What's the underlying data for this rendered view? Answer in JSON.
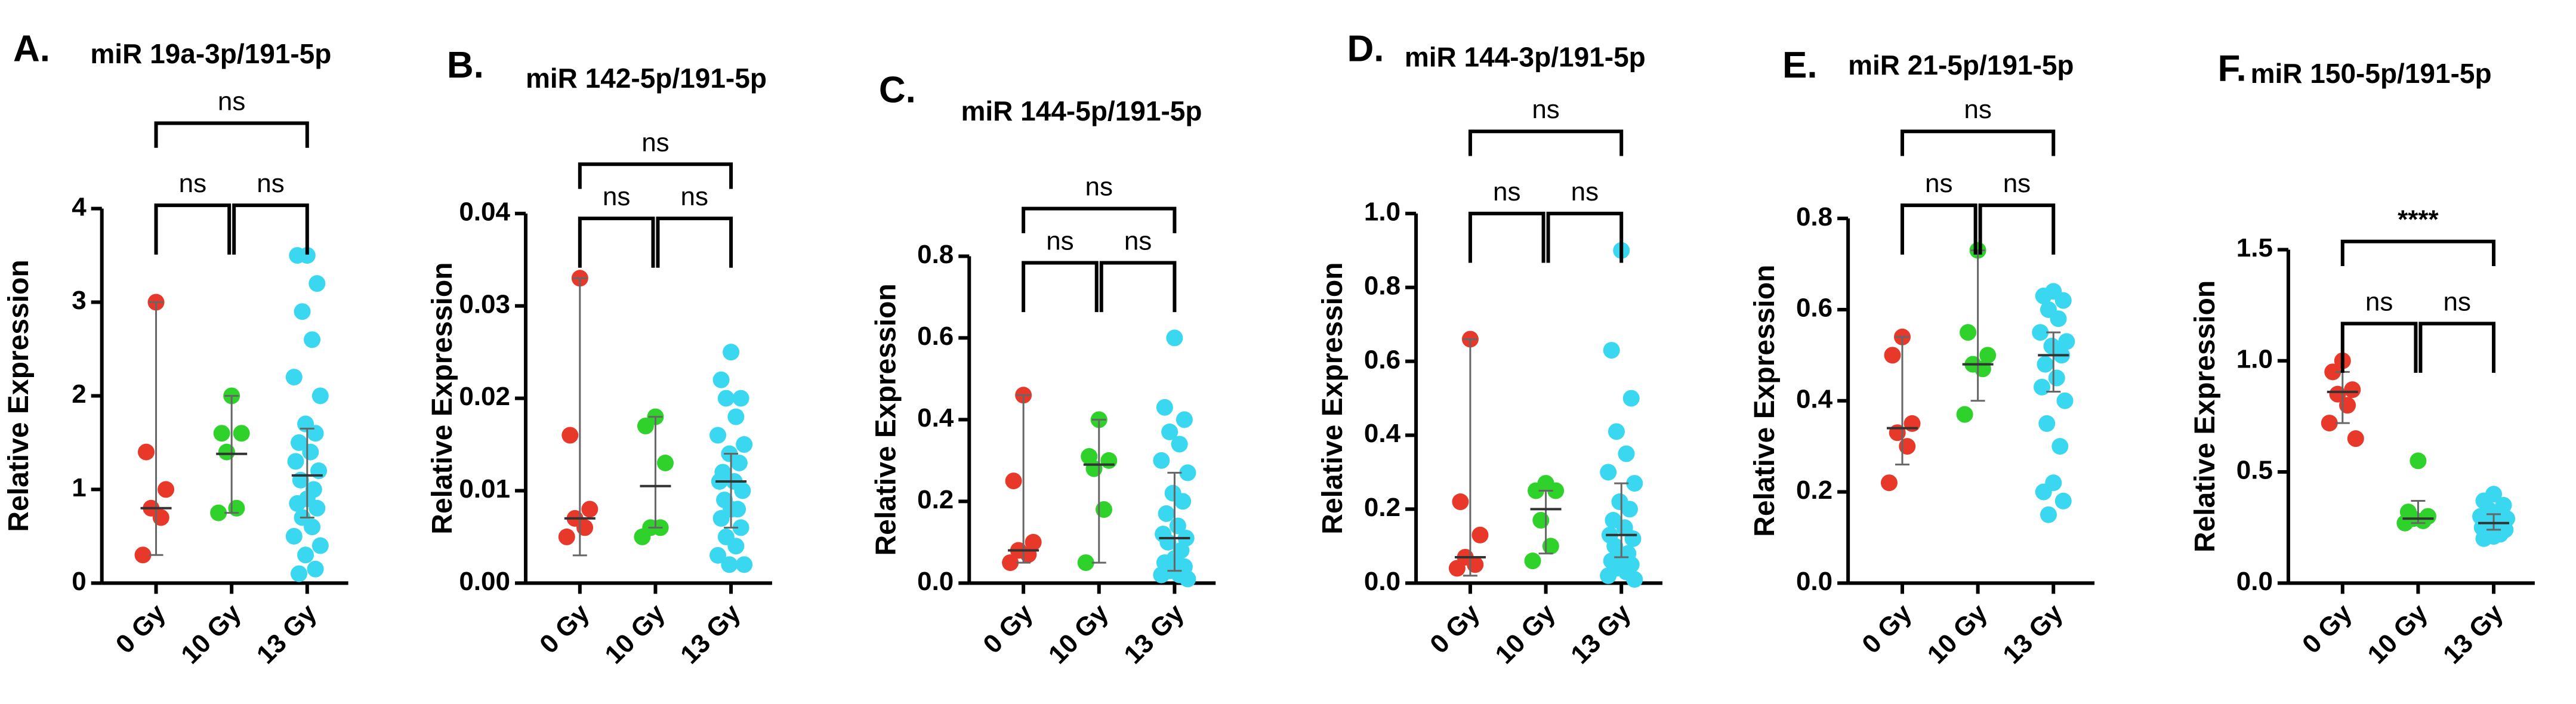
{
  "chart_data": [
    {
      "type": "scatter",
      "label": "A.",
      "title": "miR 19a-3p/191-5p",
      "ylabel": "Relative Expression",
      "categories": [
        "0 Gy",
        "10 Gy",
        "13 Gy"
      ],
      "ylim": [
        0,
        4
      ],
      "yticks": [
        0,
        1,
        2,
        3,
        4
      ],
      "significance": [
        "ns",
        "ns",
        "ns"
      ],
      "groups": [
        {
          "color": "#e8382a",
          "values": [
            3.0,
            1.4,
            1.0,
            0.8,
            0.7,
            0.3
          ],
          "median": 0.8,
          "whisker": [
            0.3,
            3.0
          ]
        },
        {
          "color": "#2fd22a",
          "values": [
            2.0,
            1.6,
            1.6,
            1.4,
            0.8,
            0.75
          ],
          "median": 1.38,
          "whisker": [
            0.75,
            2.0
          ]
        },
        {
          "color": "#3ad8f0",
          "values": [
            3.5,
            3.5,
            3.2,
            2.9,
            2.6,
            2.2,
            2.0,
            1.7,
            1.6,
            1.5,
            1.4,
            1.3,
            1.2,
            1.1,
            1.0,
            0.9,
            0.85,
            0.8,
            0.7,
            0.6,
            0.5,
            0.4,
            0.3,
            0.15,
            0.1
          ],
          "median": 1.15,
          "whisker": [
            0.7,
            1.65
          ]
        }
      ]
    },
    {
      "type": "scatter",
      "label": "B.",
      "title": "miR 142-5p/191-5p",
      "ylabel": "Relative Expression",
      "categories": [
        "0 Gy",
        "10 Gy",
        "13 Gy"
      ],
      "ylim": [
        0,
        0.04
      ],
      "yticks": [
        {
          "value": 0,
          "label": "0.00"
        },
        {
          "value": 0.01,
          "label": "0.01"
        },
        {
          "value": 0.02,
          "label": "0.02"
        },
        {
          "value": 0.03,
          "label": "0.03"
        },
        {
          "value": 0.04,
          "label": "0.04"
        }
      ],
      "significance": [
        "ns",
        "ns",
        "ns"
      ],
      "groups": [
        {
          "color": "#e8382a",
          "values": [
            0.033,
            0.016,
            0.008,
            0.007,
            0.006,
            0.005
          ],
          "median": 0.007,
          "whisker": [
            0.003,
            0.033
          ]
        },
        {
          "color": "#2fd22a",
          "values": [
            0.018,
            0.017,
            0.013,
            0.006,
            0.006,
            0.005
          ],
          "median": 0.0105,
          "whisker": [
            0.006,
            0.018
          ]
        },
        {
          "color": "#3ad8f0",
          "values": [
            0.025,
            0.022,
            0.02,
            0.02,
            0.018,
            0.016,
            0.015,
            0.014,
            0.013,
            0.012,
            0.011,
            0.011,
            0.01,
            0.009,
            0.008,
            0.008,
            0.007,
            0.006,
            0.005,
            0.004,
            0.003,
            0.002,
            0.002
          ],
          "median": 0.011,
          "whisker": [
            0.006,
            0.014
          ]
        }
      ]
    },
    {
      "type": "scatter",
      "label": "C.",
      "title": "miR 144-5p/191-5p",
      "ylabel": "Relative Expression",
      "categories": [
        "0 Gy",
        "10 Gy",
        "13 Gy"
      ],
      "ylim": [
        0,
        0.8
      ],
      "yticks": [
        {
          "value": 0,
          "label": "0.0"
        },
        {
          "value": 0.2,
          "label": "0.2"
        },
        {
          "value": 0.4,
          "label": "0.4"
        },
        {
          "value": 0.6,
          "label": "0.6"
        },
        {
          "value": 0.8,
          "label": "0.8"
        }
      ],
      "significance": [
        "ns",
        "ns",
        "ns"
      ],
      "groups": [
        {
          "color": "#e8382a",
          "values": [
            0.46,
            0.25,
            0.1,
            0.08,
            0.07,
            0.05
          ],
          "median": 0.08,
          "whisker": [
            0.05,
            0.46
          ]
        },
        {
          "color": "#2fd22a",
          "values": [
            0.4,
            0.31,
            0.3,
            0.28,
            0.18,
            0.05
          ],
          "median": 0.29,
          "whisker": [
            0.05,
            0.4
          ]
        },
        {
          "color": "#3ad8f0",
          "values": [
            0.6,
            0.43,
            0.4,
            0.37,
            0.34,
            0.3,
            0.27,
            0.22,
            0.2,
            0.17,
            0.14,
            0.12,
            0.11,
            0.1,
            0.08,
            0.06,
            0.05,
            0.04,
            0.03,
            0.02,
            0.02,
            0.01
          ],
          "median": 0.11,
          "whisker": [
            0.03,
            0.27
          ]
        }
      ]
    },
    {
      "type": "scatter",
      "label": "D.",
      "title": "miR 144-3p/191-5p",
      "ylabel": "Relative Expression",
      "categories": [
        "0 Gy",
        "10 Gy",
        "13 Gy"
      ],
      "ylim": [
        0,
        1.0
      ],
      "yticks": [
        {
          "value": 0,
          "label": "0.0"
        },
        {
          "value": 0.2,
          "label": "0.2"
        },
        {
          "value": 0.4,
          "label": "0.4"
        },
        {
          "value": 0.6,
          "label": "0.6"
        },
        {
          "value": 0.8,
          "label": "0.8"
        },
        {
          "value": 1.0,
          "label": "1.0"
        }
      ],
      "significance": [
        "ns",
        "ns",
        "ns"
      ],
      "groups": [
        {
          "color": "#e8382a",
          "values": [
            0.66,
            0.22,
            0.13,
            0.07,
            0.05,
            0.04
          ],
          "median": 0.07,
          "whisker": [
            0.02,
            0.66
          ]
        },
        {
          "color": "#2fd22a",
          "values": [
            0.27,
            0.25,
            0.25,
            0.17,
            0.1,
            0.06
          ],
          "median": 0.2,
          "whisker": [
            0.08,
            0.25
          ]
        },
        {
          "color": "#3ad8f0",
          "values": [
            0.9,
            0.63,
            0.5,
            0.41,
            0.35,
            0.3,
            0.27,
            0.22,
            0.2,
            0.17,
            0.15,
            0.13,
            0.12,
            0.1,
            0.08,
            0.07,
            0.06,
            0.05,
            0.04,
            0.03,
            0.02,
            0.01
          ],
          "median": 0.13,
          "whisker": [
            0.07,
            0.27
          ]
        }
      ]
    },
    {
      "type": "scatter",
      "label": "E.",
      "title": "miR 21-5p/191-5p",
      "ylabel": "Relative Expression",
      "categories": [
        "0 Gy",
        "10 Gy",
        "13 Gy"
      ],
      "ylim": [
        0,
        0.8
      ],
      "yticks": [
        {
          "value": 0,
          "label": "0.0"
        },
        {
          "value": 0.2,
          "label": "0.2"
        },
        {
          "value": 0.4,
          "label": "0.4"
        },
        {
          "value": 0.6,
          "label": "0.6"
        },
        {
          "value": 0.8,
          "label": "0.8"
        }
      ],
      "significance": [
        "ns",
        "ns",
        "ns"
      ],
      "groups": [
        {
          "color": "#e8382a",
          "values": [
            0.54,
            0.5,
            0.35,
            0.33,
            0.3,
            0.22
          ],
          "median": 0.34,
          "whisker": [
            0.26,
            0.54
          ]
        },
        {
          "color": "#2fd22a",
          "values": [
            0.73,
            0.55,
            0.5,
            0.48,
            0.47,
            0.37
          ],
          "median": 0.48,
          "whisker": [
            0.4,
            0.73
          ]
        },
        {
          "color": "#3ad8f0",
          "values": [
            0.64,
            0.63,
            0.62,
            0.6,
            0.58,
            0.55,
            0.53,
            0.52,
            0.5,
            0.48,
            0.45,
            0.43,
            0.4,
            0.35,
            0.3,
            0.22,
            0.2,
            0.18,
            0.15
          ],
          "median": 0.5,
          "whisker": [
            0.42,
            0.55
          ]
        }
      ]
    },
    {
      "type": "scatter",
      "label": "F.",
      "title": "miR 150-5p/191-5p",
      "ylabel": "Relative Expression",
      "categories": [
        "0 Gy",
        "10 Gy",
        "13 Gy"
      ],
      "ylim": [
        0,
        1.5
      ],
      "yticks": [
        {
          "value": 0,
          "label": "0.0"
        },
        {
          "value": 0.5,
          "label": "0.5"
        },
        {
          "value": 1.0,
          "label": "1.0"
        },
        {
          "value": 1.5,
          "label": "1.5"
        }
      ],
      "significance": [
        "ns",
        "ns",
        "****"
      ],
      "groups": [
        {
          "color": "#e8382a",
          "values": [
            1.0,
            0.95,
            0.87,
            0.85,
            0.8,
            0.72,
            0.65
          ],
          "median": 0.86,
          "whisker": [
            0.72,
            0.95
          ]
        },
        {
          "color": "#2fd22a",
          "values": [
            0.55,
            0.32,
            0.3,
            0.29,
            0.28,
            0.27
          ],
          "median": 0.29,
          "whisker": [
            0.27,
            0.37
          ]
        },
        {
          "color": "#3ad8f0",
          "values": [
            0.4,
            0.37,
            0.35,
            0.33,
            0.31,
            0.3,
            0.29,
            0.28,
            0.27,
            0.27,
            0.26,
            0.25,
            0.24,
            0.23,
            0.22,
            0.21,
            0.2
          ],
          "median": 0.27,
          "whisker": [
            0.24,
            0.31
          ]
        }
      ]
    }
  ]
}
